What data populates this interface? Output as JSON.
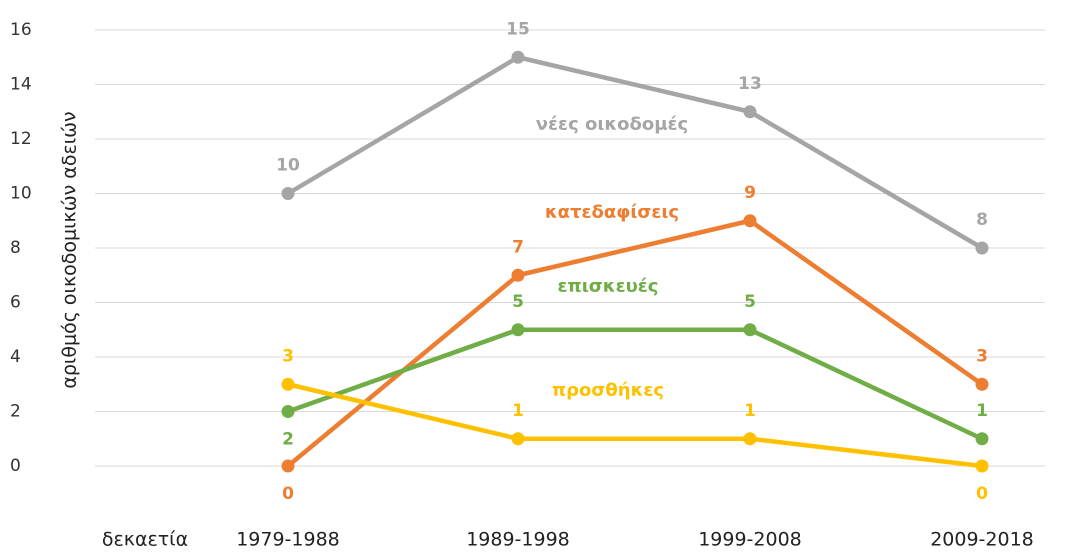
{
  "chart_data": {
    "type": "line",
    "y_label": "αριθμός οικοδομικών αδειών",
    "x_label": "δεκαετία",
    "categories": [
      "1979-1988",
      "1989-1998",
      "1999-2008",
      "2009-2018"
    ],
    "series": [
      {
        "name": "νέες οικοδομές",
        "color": "#a5a5a5",
        "values": [
          10,
          15,
          13,
          8
        ]
      },
      {
        "name": "κατεδαφίσεις",
        "color": "#ed7d31",
        "values": [
          0,
          7,
          9,
          3
        ]
      },
      {
        "name": "επισκευές",
        "color": "#70ad47",
        "values": [
          2,
          5,
          5,
          1
        ]
      },
      {
        "name": "προσθήκες",
        "color": "#ffc000",
        "values": [
          3,
          1,
          1,
          0
        ]
      }
    ],
    "ylim": [
      0,
      16
    ],
    "yticks": [
      0,
      2,
      4,
      6,
      8,
      10,
      12,
      14,
      16
    ],
    "grid": true
  }
}
